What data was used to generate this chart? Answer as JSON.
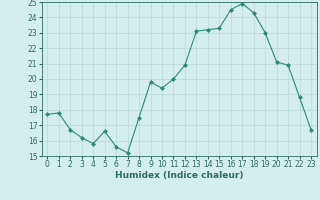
{
  "x": [
    0,
    1,
    2,
    3,
    4,
    5,
    6,
    7,
    8,
    9,
    10,
    11,
    12,
    13,
    14,
    15,
    16,
    17,
    18,
    19,
    20,
    21,
    22,
    23
  ],
  "y": [
    17.7,
    17.8,
    16.7,
    16.2,
    15.8,
    16.6,
    15.6,
    15.2,
    17.5,
    19.8,
    19.4,
    20.0,
    20.9,
    23.1,
    23.2,
    23.3,
    24.5,
    24.9,
    24.3,
    23.0,
    21.1,
    20.9,
    18.8,
    16.7
  ],
  "line_color": "#2e8b6e",
  "marker": "D",
  "marker_size": 2.0,
  "bg_color": "#d4eeee",
  "grid_color": "#b8d8d8",
  "xlabel": "Humidex (Indice chaleur)",
  "ylim": [
    15,
    25
  ],
  "xlim": [
    -0.5,
    23.5
  ],
  "yticks": [
    15,
    16,
    17,
    18,
    19,
    20,
    21,
    22,
    23,
    24,
    25
  ],
  "xticks": [
    0,
    1,
    2,
    3,
    4,
    5,
    6,
    7,
    8,
    9,
    10,
    11,
    12,
    13,
    14,
    15,
    16,
    17,
    18,
    19,
    20,
    21,
    22,
    23
  ],
  "tick_color": "#2e6b5e",
  "label_fontsize": 6.5,
  "tick_fontsize": 5.5
}
